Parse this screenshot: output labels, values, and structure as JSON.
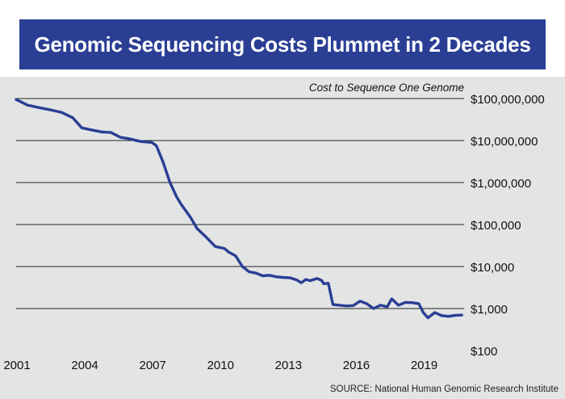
{
  "title": "Genomic Sequencing Costs Plummet in 2 Decades",
  "source": "SOURCE: National Human Genomic Research Institute",
  "colors": {
    "title_bg": "#2a3e94",
    "panel_bg": "#e3e4e4",
    "line": "#2a3e94",
    "grid": "#222222"
  },
  "chart_data": {
    "type": "line",
    "title": "Genomic Sequencing Costs Plummet in 2 Decades",
    "axis_title": "Cost to Sequence One Genome",
    "y_scale": "log",
    "ylim": [
      100,
      100000000
    ],
    "y_ticks": [
      100,
      1000,
      10000,
      100000,
      1000000,
      10000000,
      100000000
    ],
    "y_tick_labels": [
      "$100",
      "$1,000",
      "$10,000",
      "$100,000",
      "$1,000,000",
      "$10,000,000",
      "$100,000,000"
    ],
    "xlim": [
      2001,
      2020.8
    ],
    "x_ticks": [
      2001,
      2004,
      2007,
      2010,
      2013,
      2016,
      2019
    ],
    "x_tick_labels": [
      "2001",
      "2004",
      "2007",
      "2010",
      "2013",
      "2016",
      "2019"
    ],
    "grid": "horizontal",
    "series": [
      {
        "points": [
          [
            2001.0,
            95000000
          ],
          [
            2001.5,
            70000000
          ],
          [
            2002.0,
            61000000
          ],
          [
            2002.5,
            54000000
          ],
          [
            2003.0,
            47000000
          ],
          [
            2003.5,
            35000000
          ],
          [
            2003.9,
            20000000
          ],
          [
            2004.3,
            18000000
          ],
          [
            2004.8,
            16000000
          ],
          [
            2005.2,
            15500000
          ],
          [
            2005.6,
            12000000
          ],
          [
            2006.0,
            11000000
          ],
          [
            2006.5,
            9500000
          ],
          [
            2007.0,
            9000000
          ],
          [
            2007.2,
            7500000
          ],
          [
            2007.5,
            3000000
          ],
          [
            2007.8,
            1000000
          ],
          [
            2008.1,
            450000
          ],
          [
            2008.3,
            300000
          ],
          [
            2008.7,
            150000
          ],
          [
            2009.0,
            80000
          ],
          [
            2009.4,
            50000
          ],
          [
            2009.8,
            30000
          ],
          [
            2010.2,
            27000
          ],
          [
            2010.4,
            22000
          ],
          [
            2010.7,
            18000
          ],
          [
            2011.0,
            10000
          ],
          [
            2011.3,
            7500
          ],
          [
            2011.6,
            7000
          ],
          [
            2011.9,
            6000
          ],
          [
            2012.2,
            6200
          ],
          [
            2012.5,
            5700
          ],
          [
            2012.8,
            5500
          ],
          [
            2013.1,
            5400
          ],
          [
            2013.4,
            4800
          ],
          [
            2013.6,
            4100
          ],
          [
            2013.8,
            4900
          ],
          [
            2014.0,
            4600
          ],
          [
            2014.3,
            5200
          ],
          [
            2014.5,
            4700
          ],
          [
            2014.6,
            3900
          ],
          [
            2014.8,
            4000
          ],
          [
            2015.0,
            1250
          ],
          [
            2015.3,
            1200
          ],
          [
            2015.6,
            1150
          ],
          [
            2015.9,
            1180
          ],
          [
            2016.2,
            1500
          ],
          [
            2016.5,
            1300
          ],
          [
            2016.8,
            1000
          ],
          [
            2017.1,
            1200
          ],
          [
            2017.4,
            1100
          ],
          [
            2017.6,
            1700
          ],
          [
            2017.9,
            1200
          ],
          [
            2018.2,
            1400
          ],
          [
            2018.5,
            1380
          ],
          [
            2018.8,
            1300
          ],
          [
            2019.0,
            800
          ],
          [
            2019.2,
            600
          ],
          [
            2019.5,
            800
          ],
          [
            2019.8,
            680
          ],
          [
            2020.1,
            650
          ],
          [
            2020.4,
            690
          ],
          [
            2020.7,
            700
          ]
        ]
      }
    ]
  }
}
